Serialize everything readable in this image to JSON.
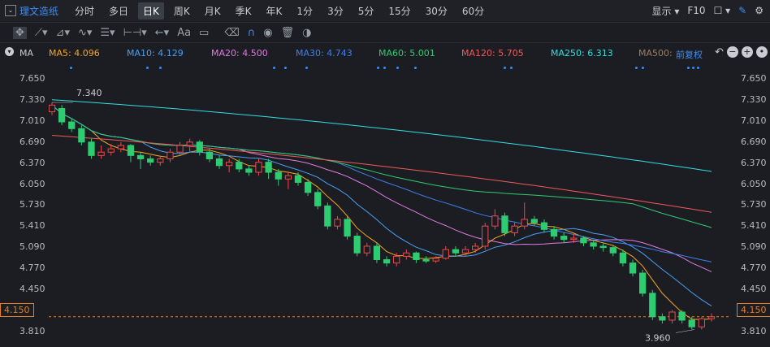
{
  "stock_name": "理文造纸",
  "period_tabs": [
    "分时",
    "多日",
    "日K",
    "周K",
    "月K",
    "季K",
    "年K",
    "1分",
    "3分",
    "5分",
    "15分",
    "30分",
    "60分"
  ],
  "active_tab": "日K",
  "right_controls": {
    "display": "显示",
    "f10": "F10"
  },
  "ma_prefix": "MA",
  "ma": [
    {
      "label": "MA5: 4.096",
      "color": "#f5a623"
    },
    {
      "label": "MA10: 4.129",
      "color": "#4a9ff5"
    },
    {
      "label": "MA20: 4.500",
      "color": "#e07be0"
    },
    {
      "label": "MA30: 4.743",
      "color": "#3d7ff0"
    },
    {
      "label": "MA60: 5.001",
      "color": "#2ecc71"
    },
    {
      "label": "MA120: 5.705",
      "color": "#f05a5a"
    },
    {
      "label": "MA250: 6.313",
      "color": "#2fe0e0"
    },
    {
      "label": "MA500:",
      "color": "#9a8060"
    }
  ],
  "adjust": "前复权",
  "y_ticks": [
    "7.650",
    "7.330",
    "7.010",
    "6.690",
    "6.370",
    "6.050",
    "5.730",
    "5.410",
    "5.090",
    "4.770",
    "4.450",
    "4.150",
    "3.810"
  ],
  "current_price": "4.150",
  "high_label": "7.340",
  "low_label": "3.960",
  "chart_data": {
    "type": "candlestick",
    "ylim": [
      3.7,
      7.8
    ],
    "candles_o_c_h_l": [
      [
        7.2,
        7.3,
        7.34,
        7.15
      ],
      [
        7.25,
        7.05,
        7.3,
        7.0
      ],
      [
        7.05,
        6.95,
        7.1,
        6.9
      ],
      [
        6.95,
        6.75,
        7.0,
        6.7
      ],
      [
        6.75,
        6.55,
        6.8,
        6.5
      ],
      [
        6.55,
        6.6,
        6.7,
        6.5
      ],
      [
        6.6,
        6.65,
        6.72,
        6.55
      ],
      [
        6.65,
        6.7,
        6.75,
        6.6
      ],
      [
        6.7,
        6.55,
        6.72,
        6.45
      ],
      [
        6.55,
        6.5,
        6.6,
        6.35
      ],
      [
        6.5,
        6.45,
        6.55,
        6.4
      ],
      [
        6.45,
        6.5,
        6.55,
        6.4
      ],
      [
        6.5,
        6.6,
        6.65,
        6.45
      ],
      [
        6.6,
        6.7,
        6.75,
        6.55
      ],
      [
        6.7,
        6.75,
        6.8,
        6.6
      ],
      [
        6.75,
        6.6,
        6.78,
        6.55
      ],
      [
        6.6,
        6.5,
        6.65,
        6.45
      ],
      [
        6.5,
        6.4,
        6.55,
        6.35
      ],
      [
        6.4,
        6.45,
        6.5,
        6.3
      ],
      [
        6.45,
        6.35,
        6.5,
        6.3
      ],
      [
        6.35,
        6.3,
        6.4,
        6.25
      ],
      [
        6.3,
        6.45,
        6.5,
        6.25
      ],
      [
        6.45,
        6.3,
        6.5,
        6.2
      ],
      [
        6.3,
        6.2,
        6.35,
        6.1
      ],
      [
        6.2,
        6.25,
        6.3,
        6.05
      ],
      [
        6.25,
        6.15,
        6.3,
        6.1
      ],
      [
        6.15,
        6.0,
        6.2,
        5.95
      ],
      [
        6.0,
        5.8,
        6.05,
        5.75
      ],
      [
        5.8,
        5.5,
        5.85,
        5.45
      ],
      [
        5.5,
        5.6,
        5.65,
        5.45
      ],
      [
        5.6,
        5.35,
        5.65,
        5.3
      ],
      [
        5.35,
        5.1,
        5.4,
        5.05
      ],
      [
        5.1,
        5.2,
        5.25,
        5.05
      ],
      [
        5.2,
        5.0,
        5.25,
        4.95
      ],
      [
        5.0,
        4.95,
        5.05,
        4.9
      ],
      [
        4.95,
        5.05,
        5.1,
        4.9
      ],
      [
        5.05,
        5.1,
        5.15,
        5.0
      ],
      [
        5.1,
        5.0,
        5.12,
        4.95
      ],
      [
        5.0,
        4.98,
        5.05,
        4.95
      ],
      [
        4.98,
        5.02,
        5.05,
        4.95
      ],
      [
        5.02,
        5.15,
        5.2,
        5.0
      ],
      [
        5.15,
        5.1,
        5.2,
        5.05
      ],
      [
        5.1,
        5.15,
        5.2,
        5.05
      ],
      [
        5.15,
        5.2,
        5.25,
        5.1
      ],
      [
        5.2,
        5.5,
        5.55,
        5.15
      ],
      [
        5.5,
        5.65,
        5.75,
        5.45
      ],
      [
        5.65,
        5.4,
        5.7,
        5.35
      ],
      [
        5.4,
        5.5,
        5.55,
        5.35
      ],
      [
        5.5,
        5.6,
        5.85,
        5.45
      ],
      [
        5.6,
        5.55,
        5.65,
        5.5
      ],
      [
        5.55,
        5.45,
        5.6,
        5.4
      ],
      [
        5.45,
        5.35,
        5.5,
        5.3
      ],
      [
        5.35,
        5.3,
        5.4,
        5.25
      ],
      [
        5.3,
        5.32,
        5.38,
        5.25
      ],
      [
        5.32,
        5.25,
        5.35,
        5.2
      ],
      [
        5.25,
        5.2,
        5.3,
        5.15
      ],
      [
        5.2,
        5.18,
        5.25,
        5.12
      ],
      [
        5.18,
        5.1,
        5.2,
        5.05
      ],
      [
        5.1,
        4.95,
        5.15,
        4.9
      ],
      [
        4.95,
        4.8,
        5.0,
        4.75
      ],
      [
        4.8,
        4.5,
        4.85,
        4.45
      ],
      [
        4.5,
        4.15,
        4.55,
        4.1
      ],
      [
        4.15,
        4.1,
        4.2,
        4.05
      ],
      [
        4.1,
        4.22,
        4.25,
        4.05
      ],
      [
        4.22,
        4.1,
        4.25,
        4.05
      ],
      [
        4.1,
        4.0,
        4.15,
        3.96
      ],
      [
        4.0,
        4.12,
        4.15,
        3.96
      ],
      [
        4.12,
        4.15,
        4.2,
        4.08
      ]
    ]
  }
}
